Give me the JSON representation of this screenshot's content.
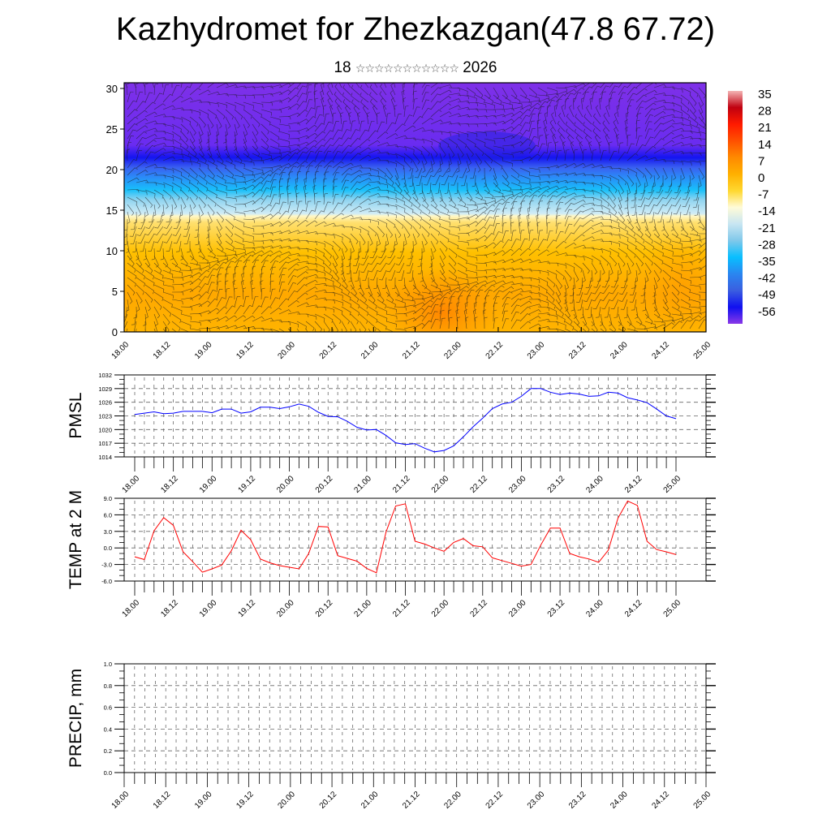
{
  "header": {
    "title": "Kazhydromet for Zhezkazgan(47.8 67.72)",
    "subtitle_day": "18",
    "subtitle_month": "☆☆☆☆☆☆☆☆☆☆☆",
    "subtitle_year": "2026"
  },
  "time_labels": [
    "18.00",
    "18.12",
    "19.00",
    "19.12",
    "20.00",
    "20.12",
    "21.00",
    "21.12",
    "22.00",
    "22.12",
    "23.00",
    "23.12",
    "24.00",
    "24.12",
    "25.00"
  ],
  "chart_data": [
    {
      "id": "cross-section",
      "type": "heatmap",
      "title": "",
      "ylabel": "",
      "ylim": [
        0,
        30.7
      ],
      "yticks": [
        0,
        5,
        10,
        15,
        20,
        25,
        30
      ],
      "colorbar": {
        "labels": [
          "35",
          "28",
          "21",
          "14",
          "7",
          "0",
          "-7",
          "-14",
          "-21",
          "-28",
          "-35",
          "-42",
          "-49",
          "-56"
        ],
        "colors": [
          "#f4b4b4",
          "#c00010",
          "#ff1a00",
          "#ff5000",
          "#ff8a00",
          "#ffb000",
          "#ffd830",
          "#fffbd8",
          "#c8e6f2",
          "#80c8ea",
          "#08bfff",
          "#2a86f0",
          "#3a5ee0",
          "#1010f0",
          "#8a38e8"
        ]
      },
      "description_bands": "temperature field: warm (orange/yellow) below level 14, cold (blue/violet) above, with wind barbs"
    },
    {
      "id": "pmsl",
      "type": "line",
      "ylabel": "PMSL",
      "ylim": [
        1014,
        1032
      ],
      "yticks": [
        1014,
        1017,
        1020,
        1023,
        1026,
        1029,
        1032
      ],
      "ytick_labels": [
        "1014",
        "1017",
        "1020",
        "1023",
        "1026",
        "1029",
        "1032"
      ],
      "x_step_hours": 3,
      "color": "#0000ff",
      "values": [
        1023.3,
        1023.6,
        1023.9,
        1023.5,
        1023.6,
        1024.0,
        1024.0,
        1024.0,
        1023.7,
        1024.5,
        1024.5,
        1023.6,
        1023.9,
        1024.9,
        1024.9,
        1024.6,
        1025.0,
        1025.6,
        1025.1,
        1023.8,
        1022.9,
        1022.8,
        1021.8,
        1020.5,
        1019.9,
        1020.0,
        1018.7,
        1017.1,
        1016.7,
        1016.9,
        1015.9,
        1015.1,
        1015.4,
        1016.4,
        1018.4,
        1020.6,
        1022.5,
        1024.6,
        1025.6,
        1026.0,
        1027.3,
        1029.0,
        1029.0,
        1028.2,
        1027.7,
        1028.0,
        1027.8,
        1027.3,
        1027.4,
        1028.2,
        1028.0,
        1027.0,
        1026.5,
        1025.9,
        1024.5,
        1023.0,
        1022.4
      ]
    },
    {
      "id": "temp",
      "type": "line",
      "ylabel": "TEMP at 2 M",
      "ylim": [
        -6,
        9
      ],
      "yticks": [
        -6,
        -3,
        0,
        3,
        6,
        9
      ],
      "ytick_labels": [
        "-6.0",
        "-3.0",
        "0.0",
        "3.0",
        "6.0",
        "9.0"
      ],
      "x_step_hours": 3,
      "color": "#ff0000",
      "values": [
        -1.6,
        -2.1,
        3.1,
        5.5,
        4.1,
        -0.7,
        -2.5,
        -4.4,
        -3.8,
        -3.1,
        -0.5,
        3.2,
        1.5,
        -2.0,
        -2.7,
        -3.2,
        -3.5,
        -3.8,
        -1.0,
        3.9,
        3.8,
        -1.4,
        -1.9,
        -2.4,
        -3.7,
        -4.5,
        2.9,
        7.6,
        8.0,
        1.2,
        0.7,
        0.0,
        -0.6,
        1.0,
        1.7,
        0.4,
        0.2,
        -1.8,
        -2.3,
        -2.8,
        -3.3,
        -3.0,
        0.5,
        3.6,
        3.6,
        -1.0,
        -1.6,
        -2.0,
        -2.6,
        -0.4,
        5.4,
        8.5,
        7.7,
        1.2,
        -0.3,
        -0.7,
        -1.2
      ]
    },
    {
      "id": "precip",
      "type": "line",
      "ylabel": "PRECIP, mm",
      "ylim": [
        0,
        1
      ],
      "yticks": [
        0,
        0.2,
        0.4,
        0.6,
        0.8,
        1.0
      ],
      "ytick_labels": [
        "0.0",
        "0.2",
        "0.4",
        "0.6",
        "0.8",
        "1.0"
      ],
      "x_step_hours": 3,
      "color": "#00aa00",
      "values": []
    }
  ]
}
